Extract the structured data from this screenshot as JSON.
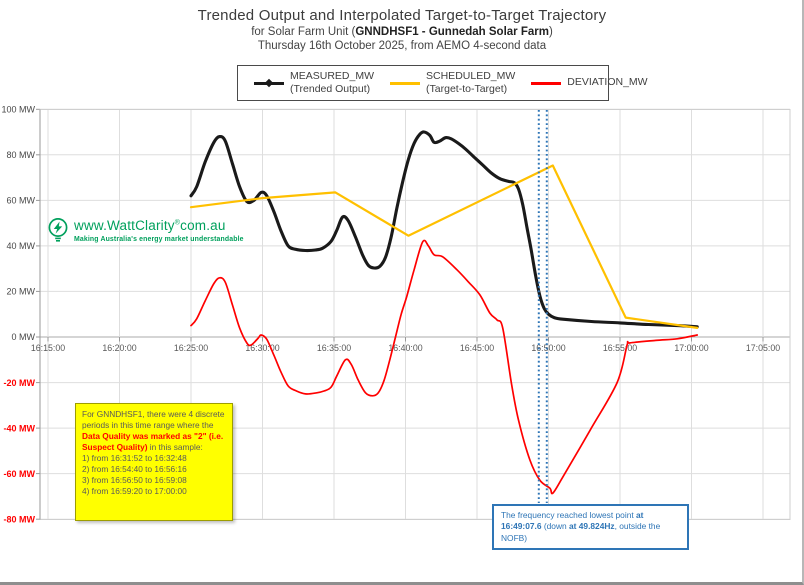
{
  "title": {
    "line1": "Trended Output and Interpolated Target-to-Target Trajectory",
    "line2_prefix": "for Solar Farm Unit (",
    "line2_bold": "GNNDHSF1 - Gunnedah Solar Farm",
    "line2_suffix": ")",
    "line3": "Thursday 16th October 2025, from AEMO 4-second data"
  },
  "watermark": {
    "url": "www.WattClarity",
    "reg": "®",
    "domain": "com.au",
    "tagline": "Making Australia's energy market understandable",
    "color": "#00a05c"
  },
  "yellow_note": {
    "intro": "For GNNDHSF1, there were 4 discrete periods in this time range where the ",
    "highlight": "Data Quality was marked as \"2\" (i.e. Suspect Quality)",
    "outro": " in this sample:",
    "items": [
      "1) from 16:31:52 to 16:32:48",
      "2) from 16:54:40 to 16:56:16",
      "3) from 16:56:50 to 16:59:08",
      "4) from 16:59:20 to 17:00:00"
    ],
    "bg_color": "#ffff00",
    "highlight_color": "#ff0000"
  },
  "freq_note": {
    "p1": "The frequency reached lowest point ",
    "b1": "at 16:49:07.6",
    "p2": " (down ",
    "b2": "at 49.824Hz",
    "p3": ", outside the NOFB)",
    "color": "#2e75b6"
  },
  "chart_data": {
    "type": "line",
    "title": "Trended Output and Interpolated Target-to-Target Trajectory",
    "y_unit": "MW",
    "ylim": [
      -80,
      100
    ],
    "grid": true,
    "x_points_unit": "minutes after 16:15:00",
    "yticks": [
      100,
      80,
      60,
      40,
      20,
      0,
      -20,
      -40,
      -60,
      -80
    ],
    "ytick_suffix": " MW",
    "negative_tick_color": "#ff0000",
    "xticks": [
      {
        "label": "16:15:00",
        "min": 0
      },
      {
        "label": "16:20:00",
        "min": 5
      },
      {
        "label": "16:25:00",
        "min": 10
      },
      {
        "label": "16:30:00",
        "min": 15
      },
      {
        "label": "16:35:00",
        "min": 20
      },
      {
        "label": "16:40:00",
        "min": 25
      },
      {
        "label": "16:45:00",
        "min": 30
      },
      {
        "label": "16:50:00",
        "min": 35
      },
      {
        "label": "16:55:00",
        "min": 40
      },
      {
        "label": "17:00:00",
        "min": 45
      },
      {
        "label": "17:05:00",
        "min": 50
      }
    ],
    "series": [
      {
        "name": "MEASURED_MW",
        "desc": "(Trended Output)",
        "color": "#1a1a1a",
        "width": 3.1,
        "smooth": true,
        "points": [
          [
            10,
            62
          ],
          [
            10.4,
            66
          ],
          [
            11,
            77
          ],
          [
            11.6,
            85.5
          ],
          [
            12,
            88
          ],
          [
            12.4,
            86
          ],
          [
            12.9,
            76
          ],
          [
            13.4,
            66
          ],
          [
            13.9,
            59.5
          ],
          [
            14.4,
            60
          ],
          [
            14.9,
            63.5
          ],
          [
            15.3,
            62
          ],
          [
            15.8,
            55
          ],
          [
            16.3,
            46.5
          ],
          [
            16.8,
            40
          ],
          [
            17.3,
            38.5
          ],
          [
            18,
            38
          ],
          [
            18.7,
            38.2
          ],
          [
            19.2,
            39
          ],
          [
            19.8,
            42
          ],
          [
            20.2,
            47
          ],
          [
            20.6,
            52.7
          ],
          [
            21,
            51
          ],
          [
            21.5,
            44
          ],
          [
            22,
            36
          ],
          [
            22.4,
            31.5
          ],
          [
            22.8,
            30.3
          ],
          [
            23.2,
            31
          ],
          [
            23.6,
            35
          ],
          [
            24,
            44
          ],
          [
            24.4,
            56.7
          ],
          [
            24.8,
            68
          ],
          [
            25.2,
            78
          ],
          [
            25.6,
            85
          ],
          [
            26,
            89
          ],
          [
            26.3,
            90
          ],
          [
            26.7,
            88.5
          ],
          [
            27,
            85.5
          ],
          [
            27.4,
            86
          ],
          [
            27.8,
            87.5
          ],
          [
            28.2,
            87
          ],
          [
            28.7,
            85
          ],
          [
            29.2,
            82.5
          ],
          [
            29.8,
            79
          ],
          [
            30.4,
            75.5
          ],
          [
            31,
            72
          ],
          [
            31.6,
            69.5
          ],
          [
            32.2,
            68.3
          ],
          [
            32.6,
            67.8
          ],
          [
            32.9,
            65
          ],
          [
            33.2,
            58
          ],
          [
            33.5,
            48
          ],
          [
            33.8,
            38
          ],
          [
            34.1,
            27
          ],
          [
            34.4,
            18
          ],
          [
            34.7,
            12.5
          ],
          [
            35,
            10
          ],
          [
            35.4,
            8.5
          ],
          [
            36,
            7.8
          ],
          [
            38,
            6.8
          ],
          [
            40,
            6.2
          ],
          [
            42,
            5.5
          ],
          [
            44,
            5
          ],
          [
            45.4,
            4.5
          ]
        ]
      },
      {
        "name": "SCHEDULED_MW",
        "desc": "(Target-to-Target)",
        "color": "#ffc000",
        "width": 2.2,
        "smooth": false,
        "points": [
          [
            10,
            57
          ],
          [
            15,
            61
          ],
          [
            20.1,
            63.5
          ],
          [
            25.2,
            44.5
          ],
          [
            35.3,
            75.3
          ],
          [
            40.4,
            8.5
          ],
          [
            45.4,
            4
          ]
        ]
      },
      {
        "name": "DEVIATION_MW",
        "desc": "",
        "color": "#ff0000",
        "width": 1.7,
        "smooth": true,
        "points": [
          [
            10,
            5
          ],
          [
            10.4,
            8
          ],
          [
            11,
            16
          ],
          [
            11.6,
            23.5
          ],
          [
            12,
            26
          ],
          [
            12.4,
            24
          ],
          [
            12.9,
            14
          ],
          [
            13.4,
            4
          ],
          [
            13.9,
            -2.6
          ],
          [
            14.2,
            -3.5
          ],
          [
            14.7,
            -0.5
          ],
          [
            14.9,
            0.9
          ],
          [
            15.3,
            -1
          ],
          [
            15.8,
            -8
          ],
          [
            16.3,
            -15.5
          ],
          [
            16.8,
            -21.5
          ],
          [
            17.3,
            -23.5
          ],
          [
            18,
            -25
          ],
          [
            18.8,
            -24.5
          ],
          [
            19.3,
            -23.7
          ],
          [
            19.8,
            -22
          ],
          [
            20.2,
            -17
          ],
          [
            20.8,
            -10
          ],
          [
            21.2,
            -12
          ],
          [
            21.7,
            -19
          ],
          [
            22.2,
            -24.5
          ],
          [
            22.7,
            -25.8
          ],
          [
            23.1,
            -24.5
          ],
          [
            23.5,
            -19
          ],
          [
            23.9,
            -10
          ],
          [
            24.3,
            0
          ],
          [
            24.7,
            10
          ],
          [
            25.1,
            18
          ],
          [
            25.6,
            29.5
          ],
          [
            26.2,
            41.8
          ],
          [
            26.6,
            40
          ],
          [
            27,
            36.1
          ],
          [
            27.6,
            35.2
          ],
          [
            28.6,
            29.5
          ],
          [
            29.4,
            24.2
          ],
          [
            30.2,
            18.5
          ],
          [
            30.9,
            10.5
          ],
          [
            31.4,
            7.5
          ],
          [
            31.8,
            4
          ],
          [
            32.4,
            -20
          ],
          [
            32.9,
            -36.5
          ],
          [
            33.7,
            -54
          ],
          [
            34.4,
            -62.9
          ],
          [
            35.1,
            -66.4
          ],
          [
            35.3,
            -68.6
          ],
          [
            36,
            -61.5
          ],
          [
            37.9,
            -41
          ],
          [
            39.8,
            -20
          ],
          [
            40.5,
            -3.5
          ],
          [
            40.7,
            -2.6
          ],
          [
            42.5,
            -1.5
          ],
          [
            44,
            -0.8
          ],
          [
            45.4,
            0.9
          ]
        ]
      }
    ],
    "event_lines": {
      "style": "dotted",
      "color": "#2e75b6",
      "x_minutes": [
        34.32,
        34.88
      ]
    }
  }
}
